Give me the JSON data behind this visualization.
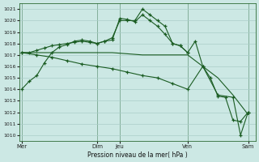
{
  "background_color": "#cce8e4",
  "grid_color": "#aacec8",
  "line_color": "#1a5c22",
  "title": "Pression niveau de la mer( hPa )",
  "ylim": [
    1009.5,
    1021.5
  ],
  "yticks": [
    1010,
    1011,
    1012,
    1013,
    1014,
    1015,
    1016,
    1017,
    1018,
    1019,
    1020,
    1021
  ],
  "xtick_labels": [
    "Mer",
    "Dim",
    "Jeu",
    "Ven",
    "Sam"
  ],
  "xtick_positions": [
    0,
    10,
    13,
    22,
    30
  ],
  "vline_positions": [
    0,
    10,
    13,
    22,
    30
  ],
  "xlim": [
    -0.3,
    31
  ],
  "line1_x": [
    0,
    1,
    2,
    3,
    4,
    5,
    6,
    7,
    8,
    9,
    10,
    11,
    12,
    13,
    14,
    15,
    16,
    17,
    18,
    19,
    20,
    21,
    22,
    23,
    24,
    25,
    26,
    27,
    28,
    29,
    30
  ],
  "line1_y": [
    1014.0,
    1014.7,
    1015.2,
    1016.3,
    1017.2,
    1017.7,
    1017.9,
    1018.2,
    1018.3,
    1018.2,
    1018.0,
    1018.2,
    1018.5,
    1020.0,
    1020.0,
    1020.0,
    1021.0,
    1020.5,
    1020.0,
    1019.5,
    1018.0,
    1017.8,
    1017.2,
    1018.2,
    1016.0,
    1015.0,
    1013.4,
    1013.3,
    1011.3,
    1011.2,
    1012.0
  ],
  "line2_x": [
    0,
    1,
    2,
    3,
    4,
    5,
    6,
    7,
    8,
    9,
    10,
    11,
    12,
    13,
    14,
    15,
    16,
    17,
    18,
    19,
    20,
    21,
    22
  ],
  "line2_y": [
    1017.2,
    1017.2,
    1017.4,
    1017.6,
    1017.8,
    1017.9,
    1018.0,
    1018.1,
    1018.2,
    1018.1,
    1018.0,
    1018.2,
    1018.3,
    1020.2,
    1020.1,
    1019.9,
    1020.5,
    1020.0,
    1019.5,
    1018.8,
    1018.0,
    1017.8,
    1017.2
  ],
  "line3_x": [
    0,
    2,
    4,
    6,
    8,
    10,
    12,
    14,
    16,
    18,
    20,
    22,
    24,
    26,
    28,
    30
  ],
  "line3_y": [
    1017.2,
    1017.2,
    1017.2,
    1017.2,
    1017.2,
    1017.2,
    1017.2,
    1017.1,
    1017.0,
    1017.0,
    1017.0,
    1017.0,
    1016.0,
    1015.0,
    1013.5,
    1011.8
  ],
  "line4_x": [
    0,
    2,
    4,
    6,
    8,
    10,
    12,
    14,
    16,
    18,
    20,
    22,
    24,
    26,
    28,
    29,
    30
  ],
  "line4_y": [
    1017.2,
    1017.0,
    1016.8,
    1016.5,
    1016.2,
    1016.0,
    1015.8,
    1015.5,
    1015.2,
    1015.0,
    1014.5,
    1014.0,
    1016.0,
    1013.5,
    1013.3,
    1010.0,
    1012.0
  ]
}
